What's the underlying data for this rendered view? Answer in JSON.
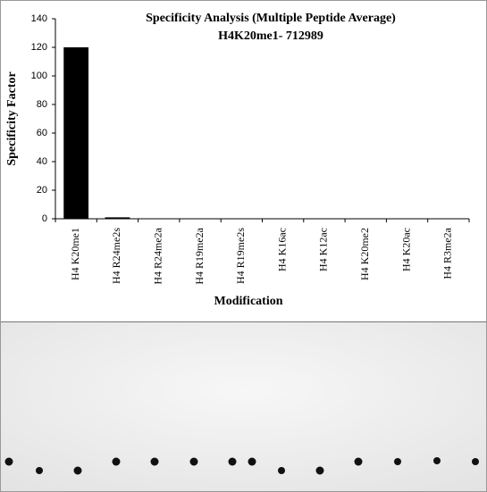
{
  "chart_data": {
    "type": "bar",
    "title": "Specificity Analysis (Multiple Peptide Average)",
    "subtitle": "H4K20me1- 712989",
    "x_label": "Modification",
    "y_label": "Specificity Factor",
    "categories": [
      "H4 K20me1",
      "H4 R24me2s",
      "H4 R24me2a",
      "H4 R19me2a",
      "H4 R19me2s",
      "H4 K16ac",
      "H4 K12ac",
      "H4 K20me2",
      "H4 K20ac",
      "H4 R3me2a"
    ],
    "values": [
      120,
      1,
      0.3,
      0.3,
      0.3,
      0.3,
      0.3,
      0.3,
      0.3,
      0.3
    ],
    "color": "#000000",
    "ylim": [
      0,
      140
    ],
    "yticks": [
      0,
      20,
      40,
      60,
      80,
      100,
      120,
      140
    ]
  }
}
